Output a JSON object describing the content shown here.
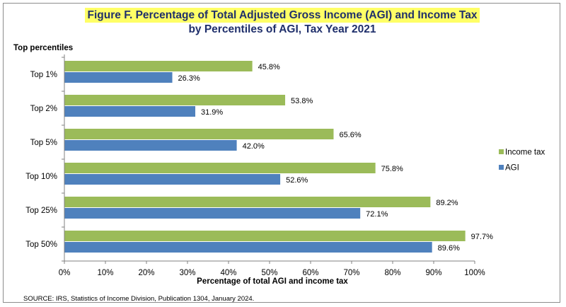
{
  "figure": {
    "title_line1": "Figure F.  Percentage of Total Adjusted Gross Income (AGI) and Income Tax",
    "title_line2": "by Percentiles of AGI, Tax Year 2021",
    "source": "SOURCE:  IRS, Statistics of Income Division, Publication 1304, January 2024."
  },
  "chart_data": {
    "type": "bar",
    "orientation": "horizontal",
    "y_axis_title": "Top percentiles",
    "xlabel": "Percentage of total AGI and income tax",
    "categories": [
      "Top 1%",
      "Top 2%",
      "Top 5%",
      "Top 10%",
      "Top 25%",
      "Top 50%"
    ],
    "series": [
      {
        "name": "Income tax",
        "color": "#9bbb59",
        "values": [
          45.8,
          53.8,
          65.6,
          75.8,
          89.2,
          97.7
        ],
        "labels": [
          "45.8%",
          "53.8%",
          "65.6%",
          "75.8%",
          "89.2%",
          "97.7%"
        ]
      },
      {
        "name": "AGI",
        "color": "#4f81bd",
        "values": [
          26.3,
          31.9,
          42.0,
          52.6,
          72.1,
          89.6
        ],
        "labels": [
          "26.3%",
          "31.9%",
          "42.0%",
          "52.6%",
          "72.1%",
          "89.6%"
        ]
      }
    ],
    "xlim": [
      0,
      100
    ],
    "x_ticks": [
      "0%",
      "10%",
      "20%",
      "30%",
      "40%",
      "50%",
      "60%",
      "70%",
      "80%",
      "90%",
      "100%"
    ],
    "grid": false,
    "legend_position": "right"
  }
}
